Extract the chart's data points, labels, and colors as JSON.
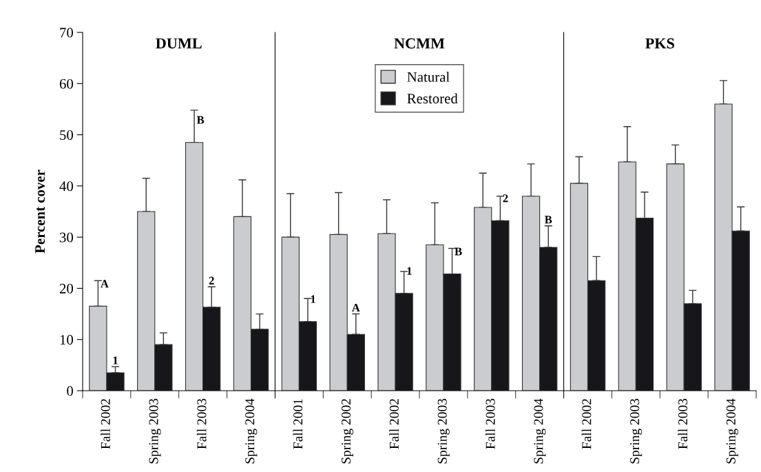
{
  "chart_data": [
    {
      "type": "bar",
      "title": "DUML",
      "ylabel": "Percent cover",
      "categories": [
        "Fall 2002",
        "Spring 2003",
        "Fall 2003",
        "Spring 2004"
      ],
      "ylim": [
        0,
        70
      ],
      "yticks": [
        0,
        10,
        20,
        30,
        40,
        50,
        60,
        70
      ],
      "grid": false,
      "series": [
        {
          "color": "#cbcccf",
          "values": [
            16.5,
            35,
            48.5,
            34
          ],
          "errors": [
            [
              16.5,
              21.5
            ],
            [
              35,
              41.5
            ],
            [
              48.5,
              54.8
            ],
            [
              34,
              41.2
            ]
          ]
        },
        {
          "color": "#17161b",
          "values": [
            3.5,
            9,
            16.3,
            12
          ],
          "errors": [
            [
              3.5,
              4.7
            ],
            [
              9,
              11.3
            ],
            [
              16.3,
              20.3
            ],
            [
              12,
              15
            ]
          ]
        }
      ],
      "annotations": [
        {
          "text": "A",
          "x": "Fall 2002",
          "y": 16.5
        },
        {
          "text": "1",
          "x": "Fall 2002",
          "y": 3.5
        },
        {
          "text": "B",
          "x": "Fall 2003",
          "y": 48.5
        },
        {
          "text": "2",
          "x": "Fall 2003",
          "y": 16.3
        }
      ]
    },
    {
      "type": "bar",
      "title": "NCMM",
      "categories": [
        "Fall 2001",
        "Spring 2002",
        "Fall 2002",
        "Spring 2003",
        "Fall 2003",
        "Spring 2004"
      ],
      "ylim": [
        0,
        70
      ],
      "tick_labels": "x",
      "grid": false,
      "legend": "top",
      "series": [
        {
          "name": "Natural",
          "color": "#cbcccf",
          "values": [
            30,
            30.5,
            30.7,
            28.5,
            35.8,
            38
          ],
          "errors": [
            [
              30,
              38.5
            ],
            [
              30.5,
              38.7
            ],
            [
              30.7,
              37.3
            ],
            [
              28.5,
              36.7
            ],
            [
              35.8,
              42.5
            ],
            [
              38,
              44.3
            ]
          ]
        },
        {
          "name": "Restored",
          "color": "#17161b",
          "values": [
            13.5,
            11,
            19,
            22.8,
            33.2,
            28
          ],
          "errors": [
            [
              13.5,
              18
            ],
            [
              11,
              15
            ],
            [
              19,
              23.3
            ],
            [
              22.8,
              27.8
            ],
            [
              33.2,
              38
            ],
            [
              28,
              32.2
            ]
          ]
        }
      ],
      "annotations": [
        {
          "text": "1",
          "x": "Fall 2001",
          "y": 13.5
        },
        {
          "text": "A",
          "x": "Spring 2002",
          "y": 11
        },
        {
          "text": "1",
          "x": "Fall 2002",
          "y": 19
        },
        {
          "text": "B",
          "x": "Spring 2003",
          "y": 22.8
        },
        {
          "text": "2",
          "x": "Fall 2003",
          "y": 33.2
        },
        {
          "text": "B",
          "x": "Spring 2004",
          "y": 28
        }
      ]
    },
    {
      "type": "bar",
      "title": "PKS",
      "categories": [
        "Fall 2002",
        "Spring 2003",
        "Fall 2003",
        "Spring 2004"
      ],
      "ylim": [
        0,
        70
      ],
      "tick_labels": "x",
      "grid": false,
      "series": [
        {
          "color": "#cbcccf",
          "values": [
            40.5,
            44.7,
            44.3,
            56
          ],
          "errors": [
            [
              40.5,
              45.7
            ],
            [
              44.7,
              51.6
            ],
            [
              44.3,
              48
            ],
            [
              56,
              60.6
            ]
          ]
        },
        {
          "color": "#17161b",
          "values": [
            21.5,
            33.7,
            17,
            31.2
          ],
          "errors": [
            [
              21.5,
              26.2
            ],
            [
              33.7,
              38.8
            ],
            [
              17,
              19.6
            ],
            [
              31.2,
              35.9
            ]
          ]
        }
      ]
    }
  ]
}
